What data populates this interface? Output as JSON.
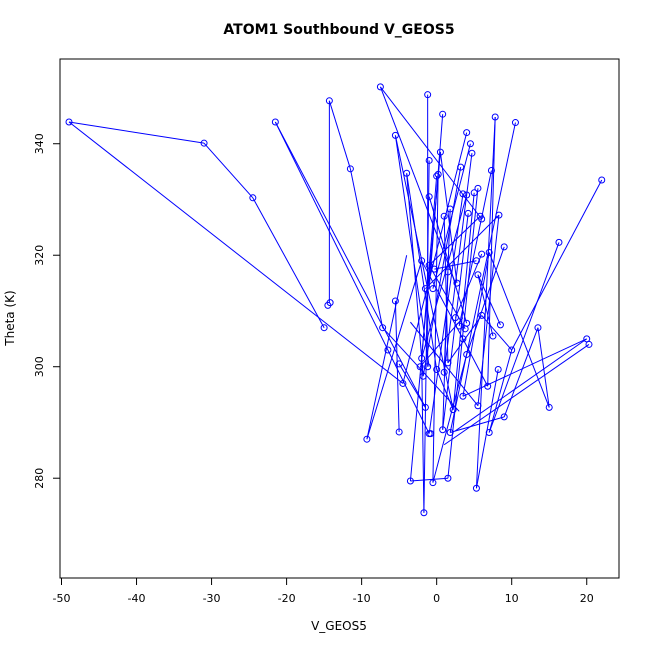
{
  "chart_data": {
    "type": "scatter",
    "title": "ATOM1 Southbound V_GEOS5",
    "xlabel": "V_GEOS5",
    "ylabel": "Theta (K)",
    "xlim": [
      -50.2,
      24.3
    ],
    "ylim": [
      262.1,
      355.2
    ],
    "xticks": [
      -50,
      -40,
      -30,
      -20,
      -10,
      0,
      10,
      20
    ],
    "yticks": [
      280,
      300,
      320,
      340
    ],
    "grid": false,
    "legend": "none",
    "color": "#0000ff",
    "marker": "open-circle",
    "points": [
      {
        "x": -49.0,
        "y": 343.9
      },
      {
        "x": -31.0,
        "y": 340.1
      },
      {
        "x": -24.5,
        "y": 330.3
      },
      {
        "x": -15.0,
        "y": 307.0
      },
      {
        "x": -21.5,
        "y": 343.9
      },
      {
        "x": -6.5,
        "y": 303.0
      },
      {
        "x": -14.3,
        "y": 347.7
      },
      {
        "x": -14.2,
        "y": 311.5
      },
      {
        "x": -14.5,
        "y": 311.0
      },
      {
        "x": -7.5,
        "y": 350.2
      },
      {
        "x": -5.5,
        "y": 341.5
      },
      {
        "x": -11.5,
        "y": 335.5
      },
      {
        "x": -4.0,
        "y": 334.7
      },
      {
        "x": -5.5,
        "y": 311.8
      },
      {
        "x": -7.2,
        "y": 307.0
      },
      {
        "x": -5.0,
        "y": 300.5
      },
      {
        "x": -4.5,
        "y": 297.0
      },
      {
        "x": -9.3,
        "y": 287.0
      },
      {
        "x": -5.0,
        "y": 288.3
      },
      {
        "x": -3.5,
        "y": 279.5
      },
      {
        "x": -1.7,
        "y": 273.8
      },
      {
        "x": -1.0,
        "y": 288.0
      },
      {
        "x": -0.5,
        "y": 279.2
      },
      {
        "x": 1.5,
        "y": 280.0
      },
      {
        "x": 5.3,
        "y": 278.2
      },
      {
        "x": -1.2,
        "y": 348.8
      },
      {
        "x": -1.0,
        "y": 337.0
      },
      {
        "x": -1.0,
        "y": 330.5
      },
      {
        "x": -1.0,
        "y": 318.2
      },
      {
        "x": -0.5,
        "y": 314.0
      },
      {
        "x": -1.5,
        "y": 314.0
      },
      {
        "x": 0.0,
        "y": 334.2
      },
      {
        "x": 0.2,
        "y": 334.5
      },
      {
        "x": 0.8,
        "y": 345.3
      },
      {
        "x": 0.5,
        "y": 338.5
      },
      {
        "x": 1.0,
        "y": 327.0
      },
      {
        "x": 1.8,
        "y": 328.3
      },
      {
        "x": 1.5,
        "y": 317.0
      },
      {
        "x": -2.0,
        "y": 319.0
      },
      {
        "x": -0.3,
        "y": 317.5
      },
      {
        "x": -2.0,
        "y": 301.5
      },
      {
        "x": -2.2,
        "y": 300.0
      },
      {
        "x": -1.2,
        "y": 300.0
      },
      {
        "x": -1.8,
        "y": 298.3
      },
      {
        "x": -1.5,
        "y": 292.7
      },
      {
        "x": -0.8,
        "y": 288.0
      },
      {
        "x": 0.0,
        "y": 299.5
      },
      {
        "x": 1.0,
        "y": 299.0
      },
      {
        "x": 1.5,
        "y": 300.7
      },
      {
        "x": 0.8,
        "y": 288.7
      },
      {
        "x": 1.8,
        "y": 288.2
      },
      {
        "x": 2.2,
        "y": 292.3
      },
      {
        "x": 2.5,
        "y": 308.8
      },
      {
        "x": 2.7,
        "y": 315.0
      },
      {
        "x": 3.0,
        "y": 307.3
      },
      {
        "x": 3.2,
        "y": 335.8
      },
      {
        "x": 3.5,
        "y": 331.0
      },
      {
        "x": 3.5,
        "y": 305.0
      },
      {
        "x": 3.5,
        "y": 294.7
      },
      {
        "x": 4.0,
        "y": 342.0
      },
      {
        "x": 4.0,
        "y": 330.8
      },
      {
        "x": 4.2,
        "y": 327.5
      },
      {
        "x": 4.5,
        "y": 340.0
      },
      {
        "x": 4.7,
        "y": 338.3
      },
      {
        "x": 4.0,
        "y": 307.8
      },
      {
        "x": 3.8,
        "y": 306.8
      },
      {
        "x": 4.0,
        "y": 302.2
      },
      {
        "x": 5.0,
        "y": 331.2
      },
      {
        "x": 5.5,
        "y": 332.0
      },
      {
        "x": 5.8,
        "y": 327.0
      },
      {
        "x": 6.0,
        "y": 326.5
      },
      {
        "x": 5.5,
        "y": 316.5
      },
      {
        "x": 5.3,
        "y": 319.0
      },
      {
        "x": 6.0,
        "y": 309.2
      },
      {
        "x": 6.0,
        "y": 320.2
      },
      {
        "x": 5.5,
        "y": 293.0
      },
      {
        "x": 6.8,
        "y": 296.5
      },
      {
        "x": 7.0,
        "y": 320.5
      },
      {
        "x": 7.3,
        "y": 335.2
      },
      {
        "x": 7.5,
        "y": 305.5
      },
      {
        "x": 7.8,
        "y": 344.8
      },
      {
        "x": 8.3,
        "y": 327.2
      },
      {
        "x": 8.2,
        "y": 299.5
      },
      {
        "x": 8.5,
        "y": 307.5
      },
      {
        "x": 7.0,
        "y": 288.2
      },
      {
        "x": 9.0,
        "y": 291.0
      },
      {
        "x": 9.0,
        "y": 321.5
      },
      {
        "x": 10.0,
        "y": 303.0
      },
      {
        "x": 10.5,
        "y": 343.8
      },
      {
        "x": 13.5,
        "y": 307.0
      },
      {
        "x": 15.0,
        "y": 292.7
      },
      {
        "x": 16.3,
        "y": 322.3
      },
      {
        "x": 20.0,
        "y": 305.0
      },
      {
        "x": 20.3,
        "y": 304.0
      },
      {
        "x": 22.0,
        "y": 333.5
      }
    ],
    "segments": [
      [
        -49.0,
        343.9,
        -31.0,
        340.1
      ],
      [
        -31.0,
        340.1,
        -24.5,
        330.3
      ],
      [
        -24.5,
        330.3,
        -15.0,
        307.0
      ],
      [
        -49.0,
        343.9,
        -4.5,
        297.0
      ],
      [
        -21.5,
        343.9,
        -6.5,
        303.0
      ],
      [
        -21.5,
        343.9,
        -1.5,
        292.7
      ],
      [
        -6.5,
        303.0,
        -1.0,
        288.0
      ],
      [
        -14.3,
        347.7,
        -14.3,
        311.5
      ],
      [
        -14.3,
        347.7,
        -11.5,
        335.5
      ],
      [
        -11.5,
        335.5,
        -7.2,
        307.0
      ],
      [
        -7.2,
        307.0,
        3.0,
        292.0
      ],
      [
        -7.5,
        350.2,
        2.5,
        315.0
      ],
      [
        -7.5,
        350.2,
        6.0,
        326.5
      ],
      [
        -5.5,
        341.5,
        -1.0,
        300.0
      ],
      [
        -5.5,
        341.5,
        2.2,
        292.3
      ],
      [
        -4.0,
        334.7,
        -1.8,
        298.3
      ],
      [
        -4.0,
        334.7,
        0.0,
        299.5
      ],
      [
        -5.5,
        311.8,
        -5.0,
        288.3
      ],
      [
        -5.0,
        300.5,
        -1.5,
        292.7
      ],
      [
        -4.5,
        297.0,
        4.0,
        342.0
      ],
      [
        -9.3,
        287.0,
        -2.0,
        319.0
      ],
      [
        -9.3,
        287.0,
        -4.0,
        320.0
      ],
      [
        -3.5,
        279.5,
        0.5,
        338.5
      ],
      [
        -3.5,
        279.5,
        1.5,
        280.0
      ],
      [
        -1.7,
        273.8,
        -1.0,
        337.0
      ],
      [
        -1.7,
        273.8,
        -2.0,
        301.5
      ],
      [
        -1.0,
        288.0,
        3.5,
        331.0
      ],
      [
        -0.5,
        279.2,
        0.2,
        334.5
      ],
      [
        -0.5,
        279.2,
        4.0,
        302.2
      ],
      [
        1.5,
        280.0,
        5.5,
        332.0
      ],
      [
        5.3,
        278.2,
        7.8,
        344.8
      ],
      [
        5.3,
        278.2,
        8.2,
        299.5
      ],
      [
        -1.2,
        348.8,
        -1.2,
        300.0
      ],
      [
        -1.0,
        330.5,
        4.0,
        307.8
      ],
      [
        -1.0,
        318.2,
        3.8,
        306.8
      ],
      [
        -1.0,
        318.2,
        5.8,
        327.0
      ],
      [
        -0.5,
        314.0,
        4.5,
        340.0
      ],
      [
        -1.5,
        314.0,
        8.3,
        327.2
      ],
      [
        0.0,
        334.2,
        -2.0,
        301.5
      ],
      [
        0.8,
        345.3,
        -1.0,
        314.0
      ],
      [
        0.5,
        338.5,
        2.7,
        315.0
      ],
      [
        1.0,
        327.0,
        1.5,
        300.7
      ],
      [
        1.8,
        328.3,
        1.0,
        299.0
      ],
      [
        1.5,
        317.0,
        0.8,
        288.7
      ],
      [
        -2.0,
        319.0,
        3.5,
        305.0
      ],
      [
        -0.3,
        317.5,
        5.3,
        319.0
      ],
      [
        -2.0,
        301.5,
        4.0,
        330.8
      ],
      [
        -2.2,
        300.0,
        3.5,
        308.8
      ],
      [
        -1.8,
        298.3,
        3.2,
        335.8
      ],
      [
        0.0,
        299.5,
        2.2,
        292.3
      ],
      [
        1.0,
        299.0,
        4.7,
        338.3
      ],
      [
        1.5,
        300.7,
        6.0,
        309.2
      ],
      [
        0.8,
        288.7,
        4.2,
        327.5
      ],
      [
        1.8,
        288.2,
        10.5,
        343.8
      ],
      [
        1.8,
        288.2,
        9.0,
        291.0
      ],
      [
        2.2,
        292.3,
        5.0,
        331.2
      ],
      [
        2.5,
        308.8,
        6.0,
        320.2
      ],
      [
        3.0,
        307.3,
        7.3,
        335.2
      ],
      [
        3.5,
        294.7,
        7.0,
        320.5
      ],
      [
        3.5,
        305.0,
        6.8,
        296.5
      ],
      [
        3.5,
        294.7,
        20.0,
        305.0
      ],
      [
        4.0,
        302.2,
        9.0,
        321.5
      ],
      [
        5.5,
        316.5,
        7.5,
        305.5
      ],
      [
        5.5,
        293.0,
        8.3,
        327.2
      ],
      [
        6.0,
        309.2,
        10.0,
        303.0
      ],
      [
        5.5,
        316.5,
        8.5,
        307.5
      ],
      [
        6.8,
        296.5,
        7.8,
        344.8
      ],
      [
        7.0,
        288.2,
        10.0,
        303.0
      ],
      [
        7.0,
        288.2,
        16.3,
        322.3
      ],
      [
        9.0,
        291.0,
        13.5,
        307.0
      ],
      [
        10.0,
        303.0,
        22.0,
        333.5
      ],
      [
        7.0,
        320.5,
        15.0,
        292.7
      ],
      [
        13.5,
        307.0,
        15.0,
        292.7
      ],
      [
        2.5,
        288.5,
        20.0,
        305.0
      ],
      [
        1.0,
        286.0,
        20.3,
        304.0
      ],
      [
        -3.5,
        308.0,
        5.5,
        293.0
      ]
    ]
  }
}
